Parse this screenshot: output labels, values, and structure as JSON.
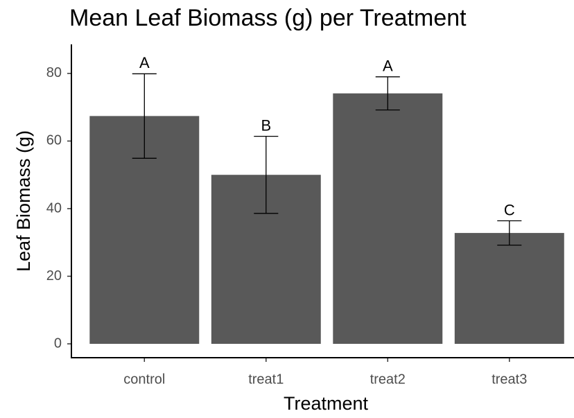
{
  "chart_data": {
    "type": "bar",
    "title": "Mean Leaf Biomass (g) per Treatment",
    "x_label": "Treatment",
    "y_label": "Leaf Biomass (g)",
    "categories": [
      "control",
      "treat1",
      "treat2",
      "treat3"
    ],
    "values": [
      67.4,
      50,
      74.1,
      32.8
    ],
    "errors": [
      12.5,
      11.4,
      4.9,
      3.6
    ],
    "annotations": [
      "A",
      "B",
      "A",
      "C"
    ],
    "color": "#595959",
    "ylim": [
      -4.1,
      88.6
    ],
    "yticks": [
      0,
      20,
      40,
      60,
      80
    ],
    "grid": false
  }
}
